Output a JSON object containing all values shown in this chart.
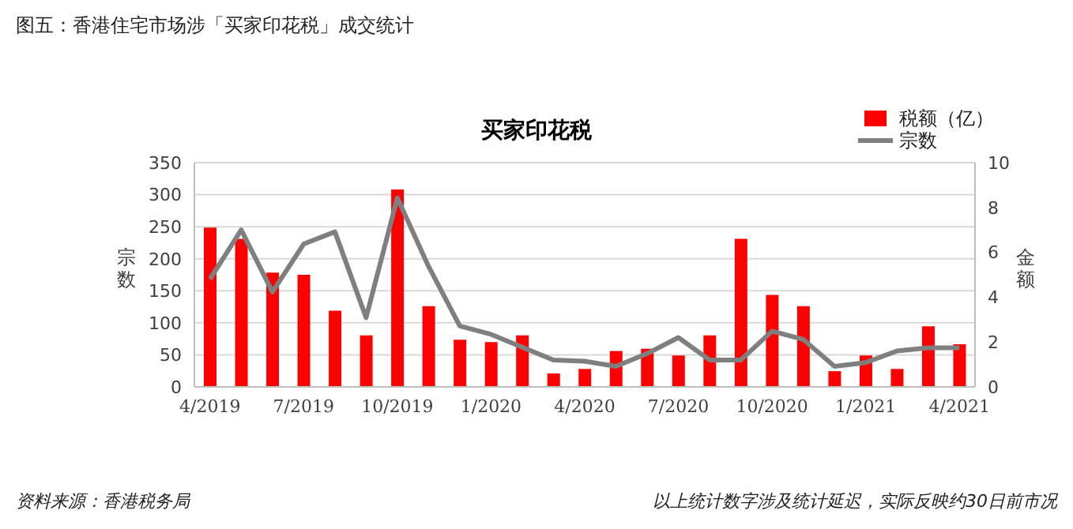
{
  "chart_data": {
    "type": "bar",
    "title": "图五：香港住宅市场涉「买家印花税」成交统计",
    "subtitle": "买家印花税",
    "ylabel": "宗数",
    "y2label": "金额",
    "categories": [
      "4/2019",
      null,
      null,
      "7/2019",
      null,
      null,
      "10/2019",
      null,
      null,
      "1/2020",
      null,
      null,
      "4/2020",
      null,
      null,
      "7/2020",
      null,
      null,
      "10/2020",
      null,
      null,
      "1/2021",
      null,
      null,
      "4/2021"
    ],
    "series": [
      {
        "name": "税额（亿）",
        "axis": "y2",
        "color": "#ff0000",
        "values": [
          7.1,
          6.6,
          5.1,
          5.0,
          3.4,
          2.3,
          8.8,
          3.6,
          2.1,
          2.0,
          2.3,
          0.6,
          0.8,
          1.6,
          1.7,
          1.4,
          2.3,
          6.6,
          4.1,
          3.6,
          0.7,
          1.4,
          0.8,
          2.7,
          1.9
        ]
      },
      {
        "name": "宗数",
        "type": "line",
        "color": "#7f7f7f",
        "values": [
          168,
          245,
          148,
          223,
          242,
          108,
          295,
          188,
          95,
          82,
          62,
          42,
          40,
          32,
          52,
          77,
          42,
          42,
          87,
          74,
          32,
          38,
          56,
          61,
          61
        ]
      }
    ],
    "ylim": [
      0,
      350
    ],
    "yticks": [
      0,
      50,
      100,
      150,
      200,
      250,
      300,
      350
    ],
    "y2lim": [
      0,
      10
    ],
    "y2ticks": [
      0,
      2,
      4,
      6,
      8,
      10
    ],
    "grid": "y",
    "legend": "top right",
    "marker": "none",
    "annotations": [
      "资料来源：香港税务局",
      "以上统计数字涉及统计延迟，实际反映约30日前市况"
    ]
  }
}
